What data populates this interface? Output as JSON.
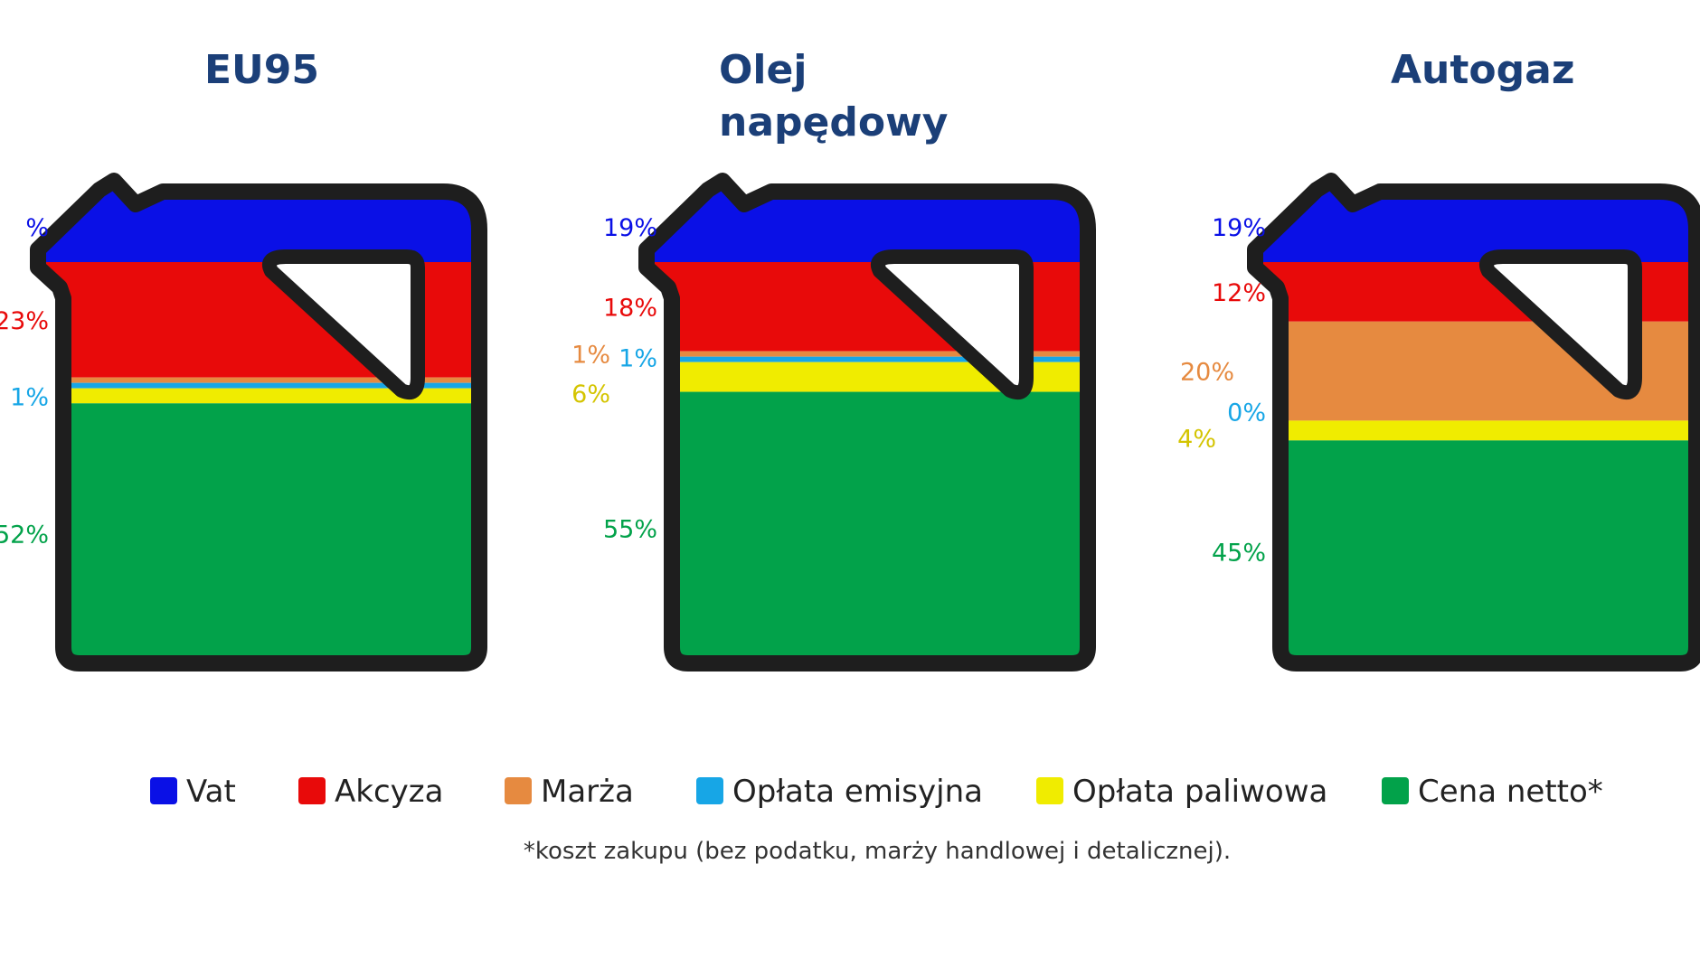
{
  "colors": {
    "vat": "#0a10e6",
    "akcyza": "#e80a0a",
    "marza": "#e68a40",
    "emisyjna": "#17a6e6",
    "paliwowa": "#f0ec00",
    "netto": "#02a24a",
    "outline": "#1e1e1e",
    "title": "#1b3f78"
  },
  "legend": [
    {
      "key": "vat",
      "label": "Vat",
      "color": "#0a10e6"
    },
    {
      "key": "akcyza",
      "label": "Akcyza",
      "color": "#e80a0a"
    },
    {
      "key": "marza",
      "label": "Marża",
      "color": "#e68a40"
    },
    {
      "key": "emisyjna",
      "label": "Opłata emisyjna",
      "color": "#17a6e6"
    },
    {
      "key": "paliwowa",
      "label": "Opłata paliwowa",
      "color": "#f0ec00"
    },
    {
      "key": "netto",
      "label": "Cena netto*",
      "color": "#02a24a"
    }
  ],
  "footnote": "*koszt zakupu (bez podatku, marży handlowej i detalicznej).",
  "chart_data": [
    {
      "type": "stacked-bar",
      "title": "EU95",
      "categories": [
        "Vat",
        "Akcyza",
        "Marża",
        "Opłata emisyjna",
        "Opłata paliwowa",
        "Cena netto*"
      ],
      "values": [
        19,
        23,
        1,
        1,
        3,
        52
      ],
      "labels": [
        "%",
        "23%",
        "",
        "1%",
        "",
        "52%"
      ],
      "unit": "%"
    },
    {
      "type": "stacked-bar",
      "title": "Olej napędowy",
      "categories": [
        "Vat",
        "Akcyza",
        "Marża",
        "Opłata emisyjna",
        "Opłata paliwowa",
        "Cena netto*"
      ],
      "values": [
        19,
        18,
        1,
        1,
        6,
        55
      ],
      "labels": [
        "19%",
        "18%",
        "1%",
        "1%",
        "6%",
        "55%"
      ],
      "unit": "%"
    },
    {
      "type": "stacked-bar",
      "title": "Autogaz",
      "categories": [
        "Vat",
        "Akcyza",
        "Marża",
        "Opłata emisyjna",
        "Opłata paliwowa",
        "Cena netto*"
      ],
      "values": [
        19,
        12,
        20,
        0,
        4,
        45
      ],
      "labels": [
        "19%",
        "12%",
        "20%",
        "0%",
        "4%",
        "45%"
      ],
      "unit": "%"
    }
  ]
}
